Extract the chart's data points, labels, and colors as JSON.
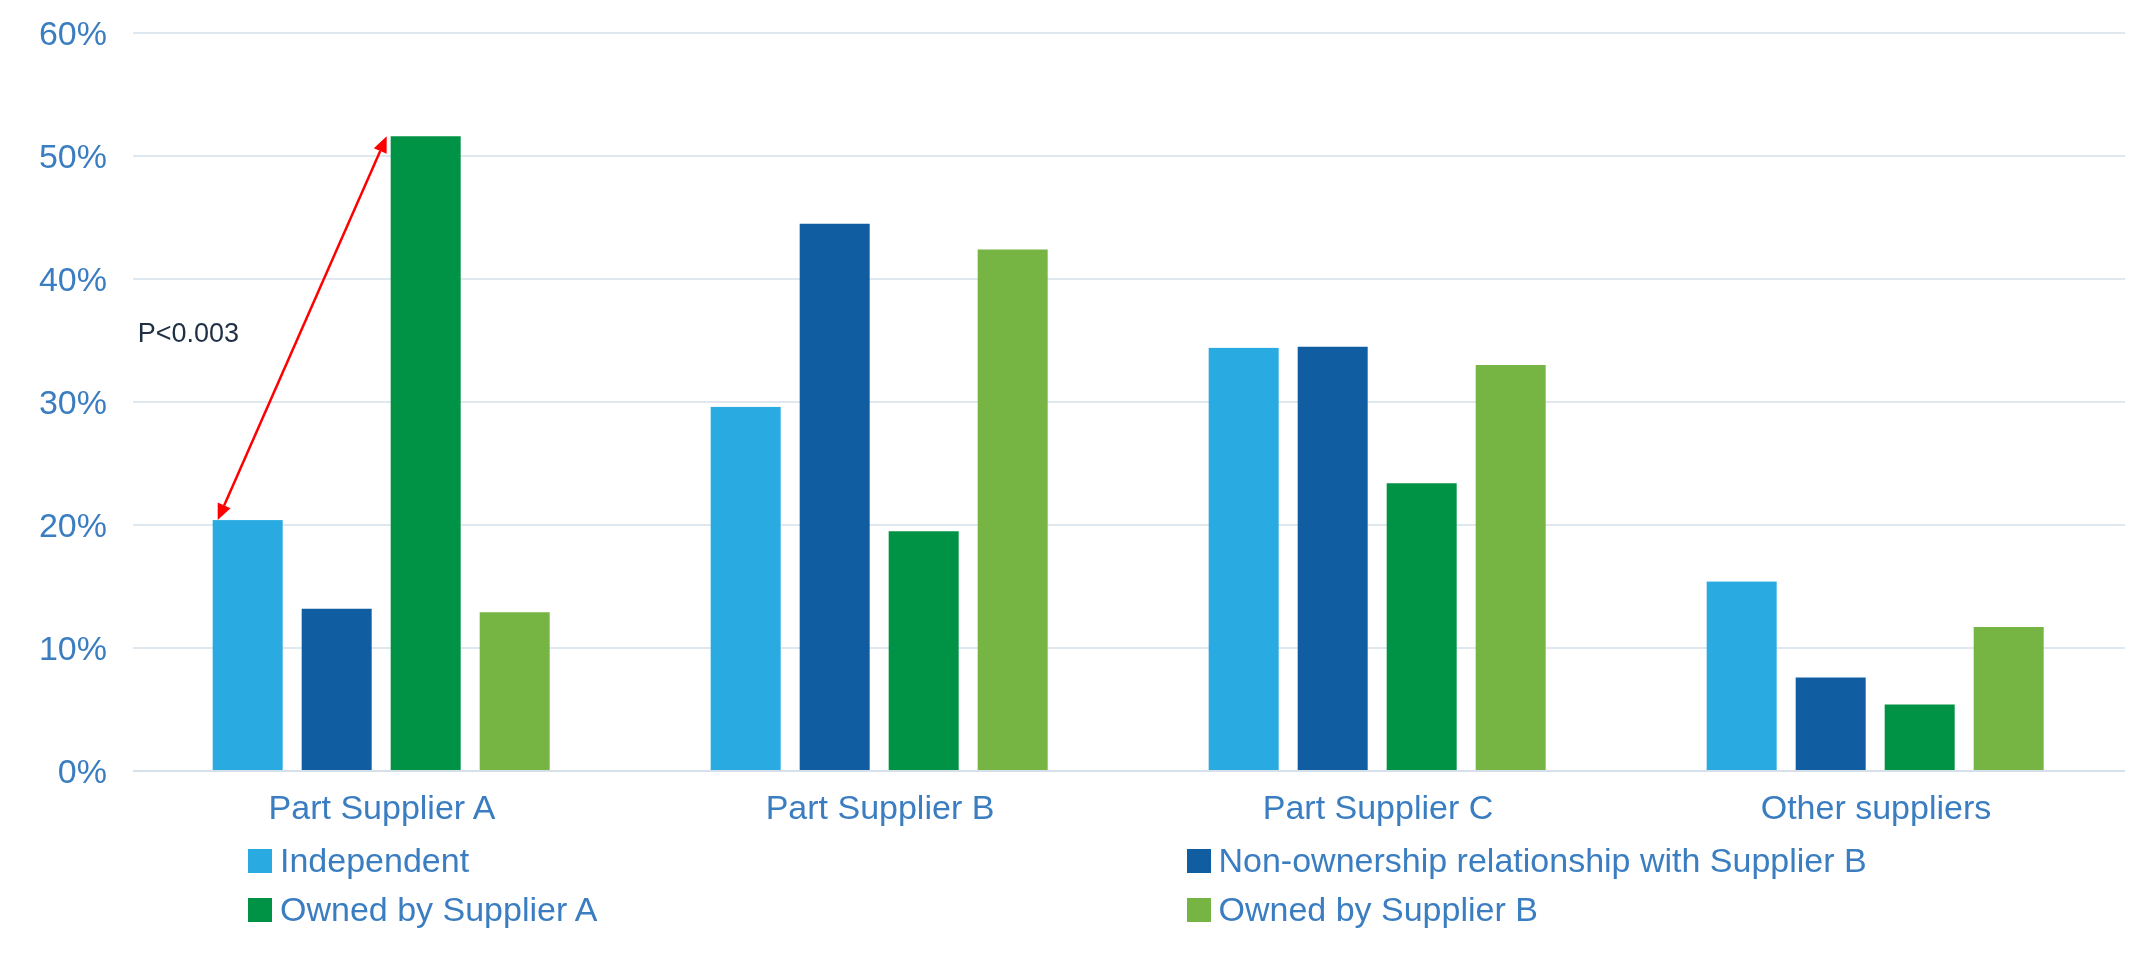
{
  "chart_data": {
    "type": "bar",
    "categories": [
      "Part Supplier A",
      "Part Supplier B",
      "Part Supplier C",
      "Other suppliers"
    ],
    "series": [
      {
        "name": "Independent",
        "color": "#29abe2",
        "values": [
          20.4,
          29.6,
          34.4,
          15.4
        ]
      },
      {
        "name": "Non-ownership relationship with Supplier B",
        "color": "#105ea1",
        "values": [
          13.2,
          44.5,
          34.5,
          7.6
        ]
      },
      {
        "name": "Owned by Supplier A",
        "color": "#009245",
        "values": [
          51.6,
          19.5,
          23.4,
          5.4
        ]
      },
      {
        "name": "Owned by Supplier B",
        "color": "#76b443",
        "values": [
          12.9,
          42.4,
          33.0,
          11.7
        ]
      }
    ],
    "ylim": [
      0,
      60
    ],
    "yticks": [
      {
        "value": 0,
        "label": "0%"
      },
      {
        "value": 10,
        "label": "10%"
      },
      {
        "value": 20,
        "label": "20%"
      },
      {
        "value": 30,
        "label": "30%"
      },
      {
        "value": 40,
        "label": "40%"
      },
      {
        "value": 50,
        "label": "50%"
      },
      {
        "value": 60,
        "label": "60%"
      }
    ],
    "grid": "y",
    "legend": "bottom",
    "annotations": [
      "P<0.003"
    ]
  }
}
